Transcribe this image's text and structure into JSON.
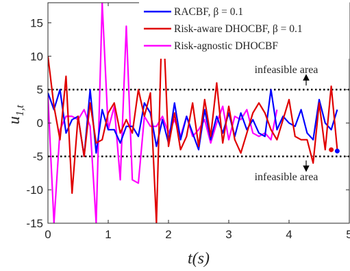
{
  "chart_data": {
    "type": "line",
    "xlabel": "t(s)",
    "ylabel": "u_{1,t}",
    "xlim": [
      0,
      5
    ],
    "ylim": [
      -15,
      18
    ],
    "xticks": [
      0,
      1,
      2,
      3,
      4,
      5
    ],
    "xtick_labels": [
      "0",
      "1",
      "2",
      "3",
      "4",
      "5"
    ],
    "yticks": [
      -15,
      -10,
      -5,
      0,
      5,
      10,
      15
    ],
    "ytick_labels": [
      "-15",
      "-10",
      "-5",
      "0",
      "5",
      "10",
      "15"
    ],
    "grid": false,
    "legend_position": "top-right",
    "series": [
      {
        "name": "RACBF, β = 0.1",
        "color": "#0000ff",
        "x": [
          0,
          0.1,
          0.2,
          0.3,
          0.4,
          0.5,
          0.6,
          0.7,
          0.8,
          0.9,
          1.0,
          1.1,
          1.2,
          1.3,
          1.4,
          1.5,
          1.6,
          1.7,
          1.8,
          1.9,
          2.0,
          2.1,
          2.2,
          2.3,
          2.4,
          2.5,
          2.6,
          2.7,
          2.8,
          2.9,
          3.0,
          3.1,
          3.2,
          3.3,
          3.4,
          3.5,
          3.6,
          3.7,
          3.8,
          3.9,
          4.0,
          4.1,
          4.2,
          4.3,
          4.4,
          4.5,
          4.6,
          4.7,
          4.8
        ],
        "y": [
          4.5,
          2.0,
          5.0,
          -1.5,
          0.5,
          1.0,
          -5.0,
          5.0,
          -4.5,
          2.0,
          -1.0,
          -1.0,
          -3.0,
          -0.5,
          -0.5,
          -2.0,
          3.0,
          1.5,
          -3.5,
          0.5,
          -3.0,
          3.0,
          -2.5,
          1.0,
          -1.5,
          -4.0,
          2.0,
          -2.5,
          1.0,
          -1.5,
          1.5,
          -2.0,
          1.5,
          -1.0,
          0.5,
          -1.5,
          -2.0,
          5.0,
          -1.0,
          1.0,
          0.0,
          -0.5,
          2.0,
          -1.5,
          -2.5,
          3.5,
          0.0,
          -1.0,
          2.0
        ]
      },
      {
        "name": "Risk-aware DHOCBF, β = 0.1",
        "color": "#e00000",
        "x": [
          0,
          0.1,
          0.2,
          0.3,
          0.4,
          0.5,
          0.6,
          0.7,
          0.8,
          0.9,
          1.0,
          1.1,
          1.2,
          1.3,
          1.4,
          1.5,
          1.6,
          1.7,
          1.8,
          1.9,
          2.0,
          2.1,
          2.2,
          2.3,
          2.4,
          2.5,
          2.6,
          2.7,
          2.8,
          2.9,
          3.0,
          3.1,
          3.2,
          3.3,
          3.4,
          3.5,
          3.6,
          3.7,
          3.8,
          3.9,
          4.0,
          4.1,
          4.2,
          4.3,
          4.4,
          4.5,
          4.6,
          4.7,
          4.8
        ],
        "y": [
          10.0,
          2.5,
          -2.5,
          7.0,
          -10.5,
          1.0,
          -5.0,
          3.0,
          -3.0,
          -2.5,
          1.5,
          3.0,
          -1.5,
          0.5,
          -1.5,
          5.0,
          1.0,
          4.5,
          -15.0,
          18.0,
          -3.5,
          1.5,
          -4.0,
          -2.0,
          3.0,
          -3.5,
          3.5,
          -2.0,
          6.0,
          -3.0,
          2.5,
          -2.5,
          -4.5,
          -1.5,
          1.5,
          3.0,
          1.5,
          -1.0,
          -2.5,
          0.5,
          3.5,
          -2.0,
          -2.5,
          -2.5,
          -6.0,
          3.0,
          -4.0,
          5.5,
          -4.0
        ]
      },
      {
        "name": "Risk-agnostic DHOCBF",
        "color": "#ff00ff",
        "x": [
          0,
          0.1,
          0.2,
          0.3,
          0.4,
          0.5,
          0.6,
          0.7,
          0.8,
          0.9,
          1.0,
          1.1,
          1.2,
          1.3,
          1.4,
          1.5,
          1.6,
          1.7,
          1.8,
          1.9,
          2.0,
          2.1,
          2.2,
          2.3,
          2.4,
          2.5,
          2.6,
          2.7,
          2.8,
          2.9,
          3.0,
          3.1,
          3.2,
          3.3,
          3.4,
          3.5,
          3.6,
          3.7,
          3.8
        ],
        "y": [
          4.0,
          -15.0,
          -1.0,
          1.0,
          1.0,
          0.5,
          2.0,
          -0.5,
          -15.0,
          18.0,
          -1.0,
          2.5,
          -8.5,
          14.5,
          -8.5,
          -9.0,
          1.0,
          -0.5,
          -0.5,
          1.0,
          -1.5,
          0.5,
          -2.0,
          1.0,
          -2.0,
          -1.0,
          0.5,
          -3.0,
          0.0,
          2.5,
          -2.5,
          1.0,
          0.5,
          2.0,
          -1.5,
          -2.0,
          -1.5,
          -2.5,
          2.0
        ]
      }
    ],
    "annotations": [
      {
        "text": "infeasible area",
        "value": 5
      },
      {
        "text": "infeasible area",
        "value": -5
      }
    ],
    "reference_lines": [
      5,
      -5
    ]
  }
}
